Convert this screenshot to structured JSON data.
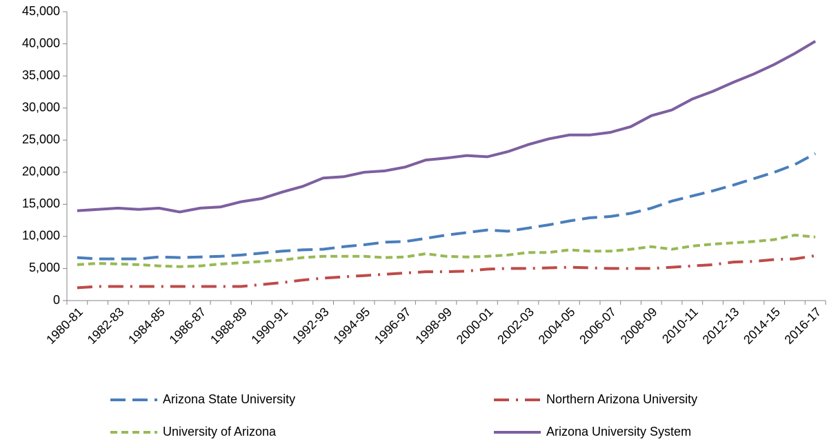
{
  "chart_data": {
    "type": "line",
    "categories": [
      "1980-81",
      null,
      "1982-83",
      null,
      "1984-85",
      null,
      "1986-87",
      null,
      "1988-89",
      null,
      "1990-91",
      null,
      "1992-93",
      null,
      "1994-95",
      null,
      "1996-97",
      null,
      "1998-99",
      null,
      "2000-01",
      null,
      "2002-03",
      null,
      "2004-05",
      null,
      "2006-07",
      null,
      "2008-09",
      null,
      "2010-11",
      null,
      "2012-13",
      null,
      "2014-15",
      null,
      "2016-17"
    ],
    "series": [
      {
        "name": "Arizona State University",
        "color": "#4a7ebb",
        "dash": "dashed",
        "values": [
          6700,
          6500,
          6500,
          6500,
          6800,
          6700,
          6800,
          6900,
          7100,
          7400,
          7700,
          7900,
          8000,
          8400,
          8700,
          9100,
          9200,
          9700,
          10200,
          10600,
          11000,
          10800,
          11300,
          11800,
          12400,
          12900,
          13100,
          13600,
          14400,
          15500,
          16300,
          17100,
          18000,
          19000,
          20000,
          21200,
          22900
        ]
      },
      {
        "name": "Northern Arizona University",
        "color": "#be4b48",
        "dash": "dash-dot",
        "values": [
          2000,
          2200,
          2200,
          2200,
          2200,
          2200,
          2200,
          2200,
          2200,
          2500,
          2800,
          3200,
          3500,
          3700,
          3900,
          4100,
          4300,
          4500,
          4500,
          4600,
          4900,
          5000,
          5000,
          5100,
          5200,
          5100,
          5000,
          5000,
          5000,
          5200,
          5400,
          5600,
          6000,
          6100,
          6400,
          6500,
          7000
        ]
      },
      {
        "name": "University of Arizona",
        "color": "#98b954",
        "dash": "short-dash",
        "values": [
          5600,
          5800,
          5700,
          5600,
          5400,
          5300,
          5400,
          5700,
          5900,
          6100,
          6300,
          6700,
          6900,
          6900,
          6900,
          6700,
          6800,
          7300,
          6900,
          6800,
          6900,
          7100,
          7500,
          7500,
          7900,
          7700,
          7700,
          8000,
          8400,
          8000,
          8500,
          8800,
          9000,
          9200,
          9500,
          10200,
          9900
        ]
      },
      {
        "name": "Arizona University System",
        "color": "#7d5fa0",
        "dash": "solid",
        "values": [
          14000,
          14200,
          14400,
          14200,
          14400,
          13800,
          14400,
          14600,
          15400,
          15900,
          16900,
          17800,
          19100,
          19300,
          20000,
          20200,
          20800,
          21900,
          22200,
          22600,
          22400,
          23200,
          24300,
          25200,
          25800,
          25800,
          26200,
          27100,
          28800,
          29700,
          31400,
          32600,
          34000,
          35300,
          36800,
          38500,
          40400
        ]
      }
    ],
    "ylim": [
      0,
      45000
    ],
    "yticks": [
      0,
      {
        "value": 5000,
        "label": "5,000"
      },
      {
        "value": 10000,
        "label": "10,000"
      },
      {
        "value": 15000,
        "label": "15,000"
      },
      {
        "value": 20000,
        "label": "20,000"
      },
      {
        "value": 25000,
        "label": "25,000"
      },
      {
        "value": 30000,
        "label": "30,000"
      },
      {
        "value": 35000,
        "label": "35,000"
      },
      {
        "value": 40000,
        "label": "40,000"
      },
      {
        "value": 45000,
        "label": "45,000"
      }
    ],
    "grid": false,
    "legend": "bottom"
  }
}
